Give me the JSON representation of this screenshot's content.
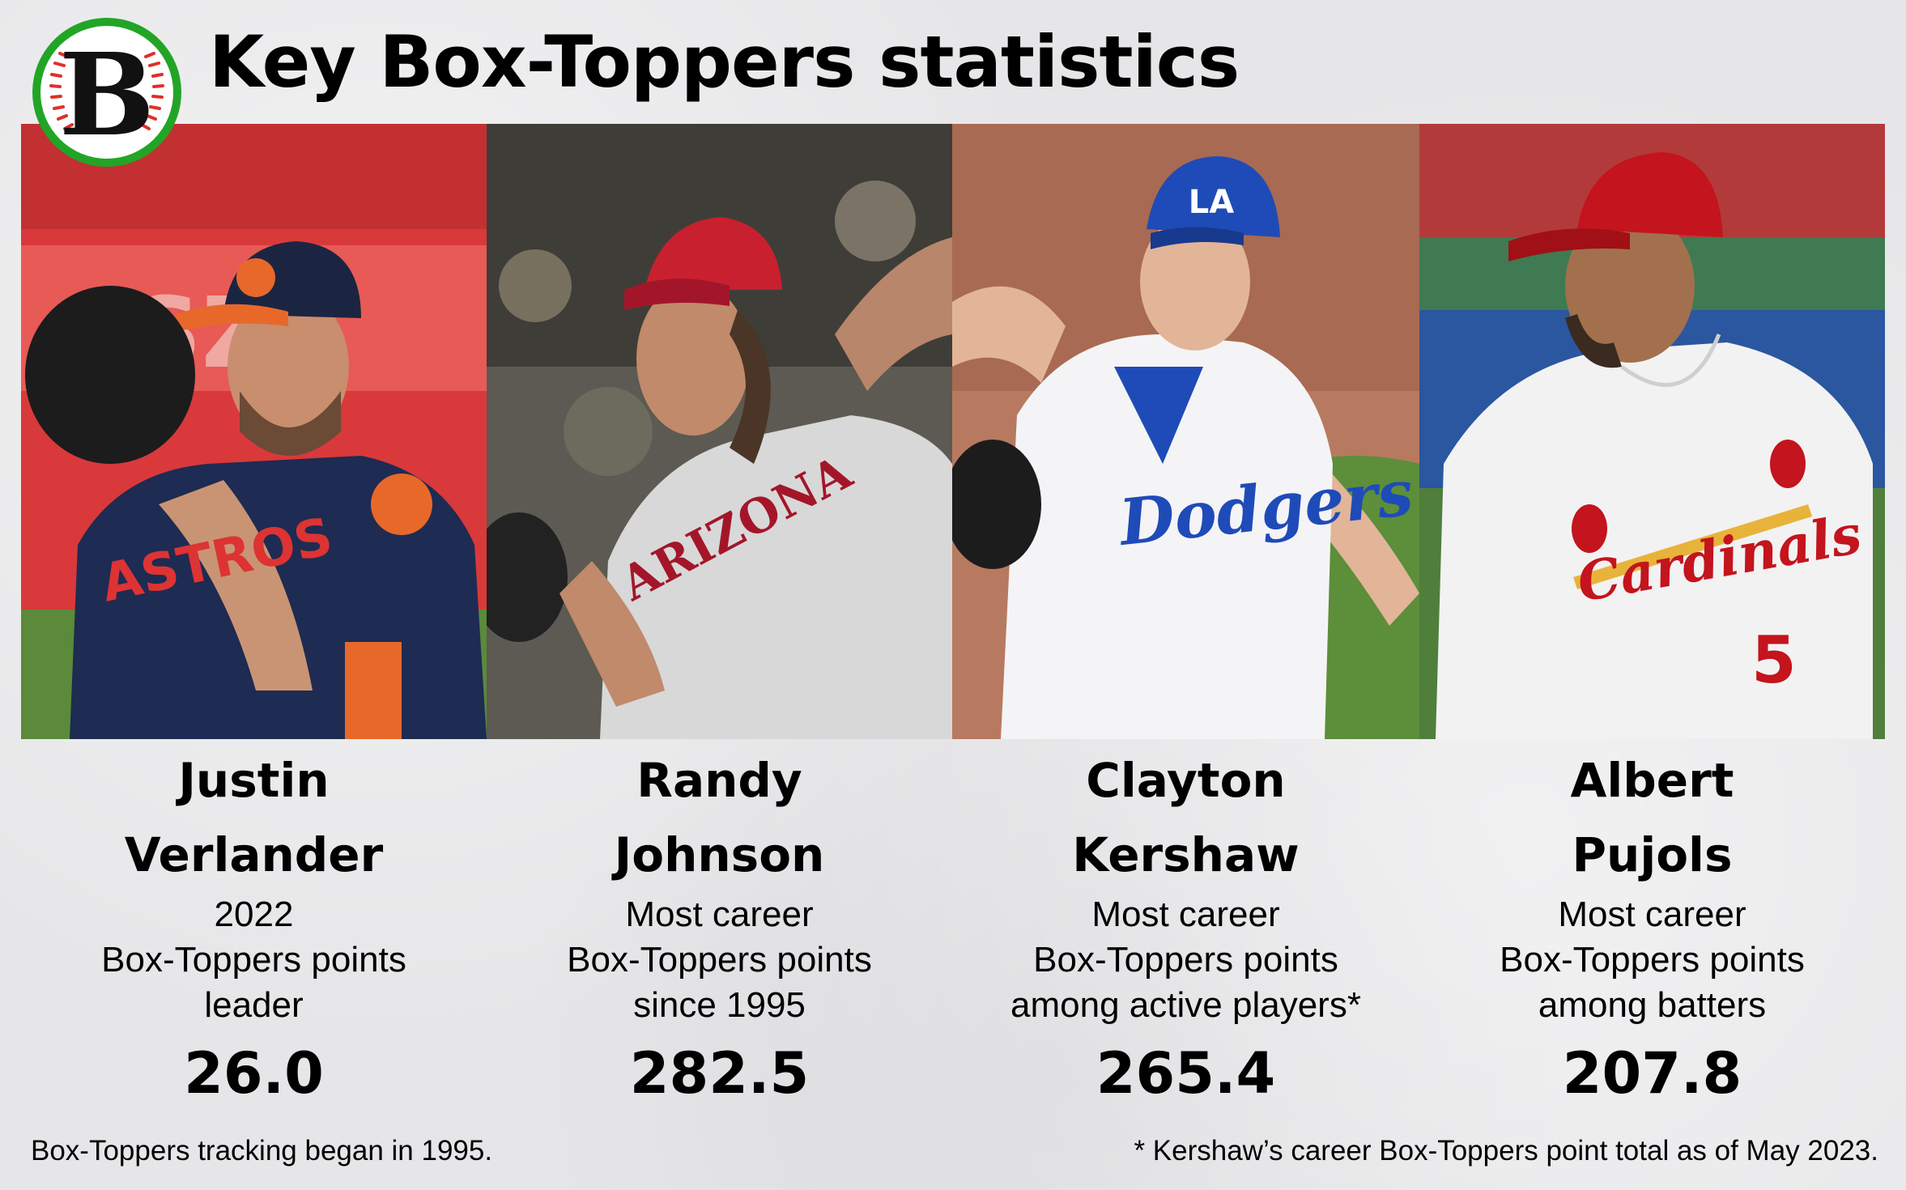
{
  "title": "Key Box-Toppers statistics",
  "logo": {
    "letter": "B",
    "ring_color": "#22a526",
    "stitch_color": "#e0302a"
  },
  "players": [
    {
      "name_line1": "Justin",
      "name_line2": "Verlander",
      "desc_line1": "2022",
      "desc_line2": "Box-Toppers points",
      "desc_line3": "leader",
      "value": "26.0",
      "photo": {
        "jersey_text": "ASTROS",
        "cap_color": "#1b2542",
        "jersey_color": "#1e2b52",
        "accent": "#e8682a"
      }
    },
    {
      "name_line1": "Randy",
      "name_line2": "Johnson",
      "desc_line1": "Most career",
      "desc_line2": "Box-Toppers points",
      "desc_line3": "since 1995",
      "value": "282.5",
      "photo": {
        "jersey_text": "ARIZONA",
        "cap_color": "#c8202f",
        "jersey_color": "#d8d8d8",
        "accent": "#a3162a"
      }
    },
    {
      "name_line1": "Clayton",
      "name_line2": "Kershaw",
      "desc_line1": "Most career",
      "desc_line2": "Box-Toppers points",
      "desc_line3": "among active players*",
      "value": "265.4",
      "photo": {
        "jersey_text": "Dodgers",
        "cap_color": "#1f4bb8",
        "jersey_color": "#f4f4f6",
        "accent": "#1f4bb8"
      }
    },
    {
      "name_line1": "Albert",
      "name_line2": "Pujols",
      "desc_line1": "Most career",
      "desc_line2": "Box-Toppers points",
      "desc_line3": "among batters",
      "value": "207.8",
      "photo": {
        "jersey_text": "Cardinals",
        "jersey_number": "5",
        "cap_color": "#c4141d",
        "jersey_color": "#f2f2f2",
        "accent": "#c4141d"
      }
    }
  ],
  "footnote_left": "Box-Toppers tracking began in 1995.",
  "footnote_right": "* Kershaw’s career Box-Toppers point total as of May 2023."
}
